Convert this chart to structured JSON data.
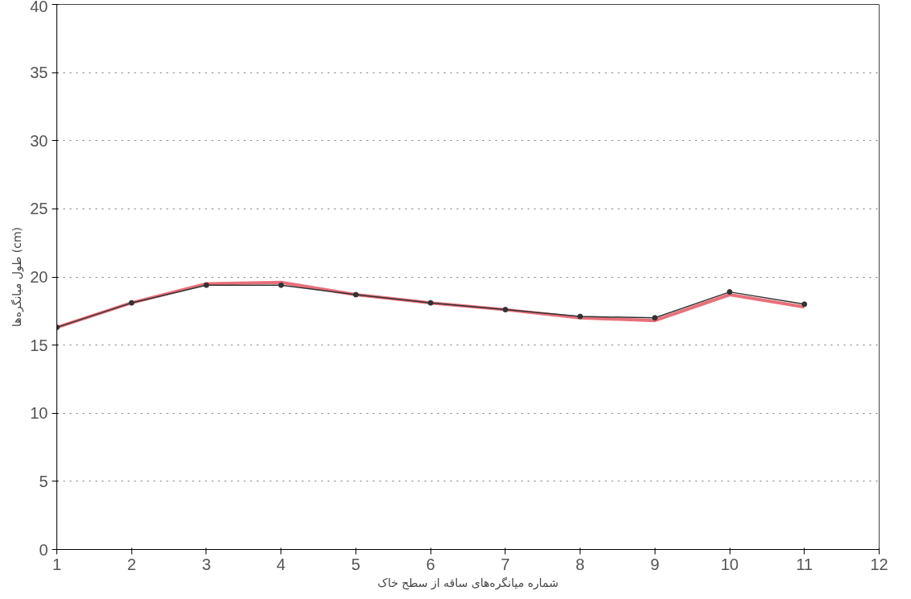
{
  "chart_data": {
    "type": "line",
    "xlabel": "شماره میانگره‌های ساقه از سطح خاک",
    "ylabel": "طول میانگره‌ها (cm)",
    "x": [
      1,
      2,
      3,
      4,
      5,
      6,
      7,
      8,
      9,
      10,
      11
    ],
    "series": [
      {
        "color": "#e8707a",
        "values": [
          16.3,
          18.1,
          19.5,
          19.6,
          18.7,
          18.1,
          17.6,
          17.0,
          16.8,
          18.7,
          17.8
        ],
        "marker": "none"
      },
      {
        "color": "#333333",
        "values": [
          16.3,
          18.1,
          19.4,
          19.4,
          18.7,
          18.1,
          17.6,
          17.1,
          17.0,
          18.9,
          18.0
        ],
        "marker": "circle"
      }
    ],
    "xlim": [
      1,
      12
    ],
    "ylim": [
      0,
      40
    ],
    "xticks": [
      1,
      2,
      3,
      4,
      5,
      6,
      7,
      8,
      9,
      10,
      11,
      12
    ],
    "yticks": [
      0,
      5,
      10,
      15,
      20,
      25,
      30,
      35,
      40
    ],
    "grid": "y"
  }
}
